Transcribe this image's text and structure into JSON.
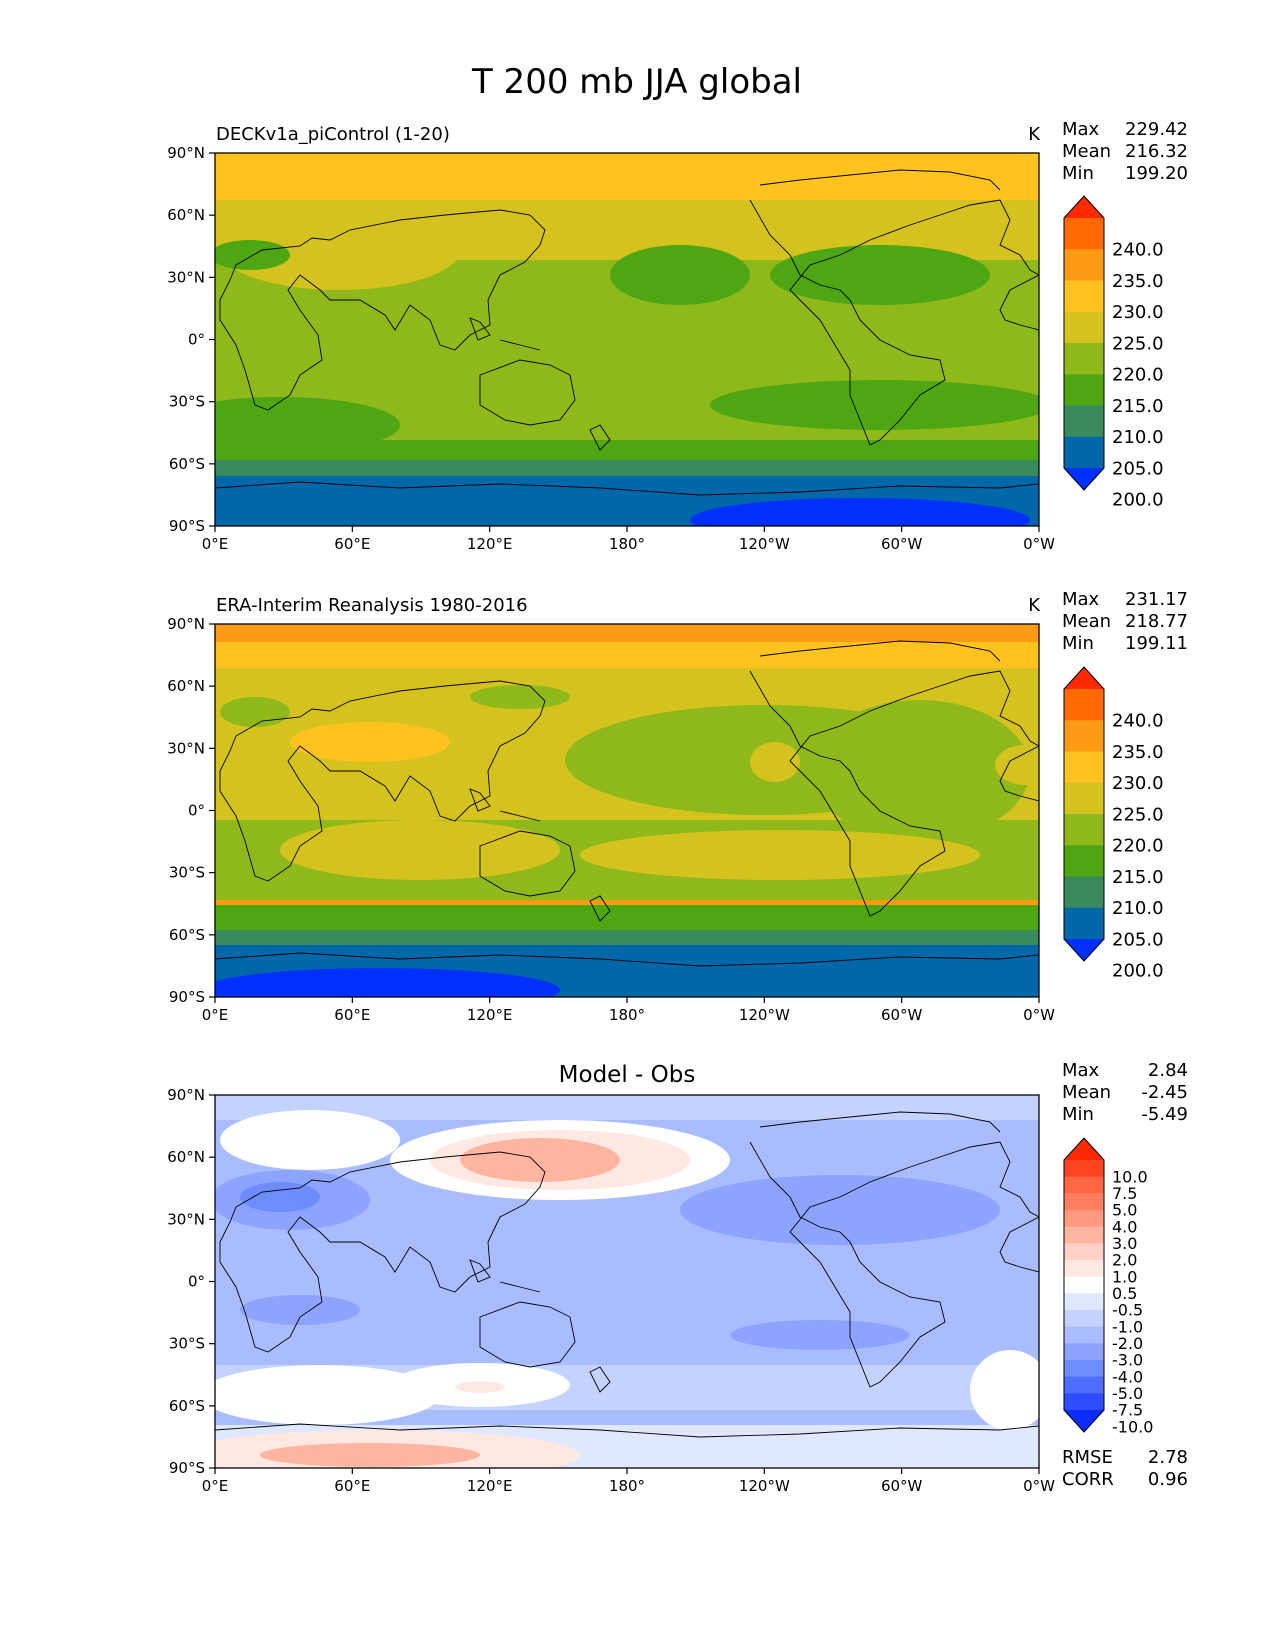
{
  "title": "T 200 mb JJA global",
  "xticks": [
    "0°E",
    "60°E",
    "120°E",
    "180°",
    "120°W",
    "60°W",
    "0°W"
  ],
  "yticks": [
    "90°N",
    "60°N",
    "30°N",
    "0°",
    "30°S",
    "60°S",
    "90°S"
  ],
  "panels": [
    {
      "id": "model",
      "left_title": "DECKv1a_piControl (1-20)",
      "center_title": "",
      "units": "K",
      "stats": [
        {
          "label": "Max",
          "value": "229.42"
        },
        {
          "label": "Mean",
          "value": "216.32"
        },
        {
          "label": "Min",
          "value": "199.20"
        }
      ],
      "colorbar_labels": [
        "240.0",
        "235.0",
        "230.0",
        "225.0",
        "220.0",
        "215.0",
        "210.0",
        "205.0",
        "200.0"
      ],
      "colorbar_colors": [
        "#ff2a00",
        "#ff6a00",
        "#ff9a14",
        "#ffc21e",
        "#d4c31e",
        "#8fb81a",
        "#4ea613",
        "#3a8a5e",
        "#0068a8",
        "#0030ff"
      ],
      "bottom_stats": []
    },
    {
      "id": "obs",
      "left_title": "ERA-Interim Reanalysis 1980-2016",
      "center_title": "",
      "units": "K",
      "stats": [
        {
          "label": "Max",
          "value": "231.17"
        },
        {
          "label": "Mean",
          "value": "218.77"
        },
        {
          "label": "Min",
          "value": "199.11"
        }
      ],
      "colorbar_labels": [
        "240.0",
        "235.0",
        "230.0",
        "225.0",
        "220.0",
        "215.0",
        "210.0",
        "205.0",
        "200.0"
      ],
      "colorbar_colors": [
        "#ff2a00",
        "#ff6a00",
        "#ff9a14",
        "#ffc21e",
        "#d4c31e",
        "#8fb81a",
        "#4ea613",
        "#3a8a5e",
        "#0068a8",
        "#0030ff"
      ],
      "bottom_stats": []
    },
    {
      "id": "diff",
      "left_title": "",
      "center_title": "Model - Obs",
      "units": "",
      "stats": [
        {
          "label": "Max",
          "value": "2.84"
        },
        {
          "label": "Mean",
          "value": "-2.45"
        },
        {
          "label": "Min",
          "value": "-5.49"
        }
      ],
      "colorbar_labels": [
        "10.0",
        "7.5",
        "5.0",
        "4.0",
        "3.0",
        "2.0",
        "1.0",
        "0.5",
        "-0.5",
        "-1.0",
        "-2.0",
        "-3.0",
        "-4.0",
        "-5.0",
        "-7.5",
        "-10.0"
      ],
      "colorbar_colors": [
        "#ff2a00",
        "#ff4422",
        "#ff6644",
        "#ff7e60",
        "#ff9a80",
        "#ffb5a0",
        "#ffd0c4",
        "#ffe8e2",
        "#ffffff",
        "#e0e8ff",
        "#c4d2ff",
        "#a8bcff",
        "#8ca4ff",
        "#6f8cff",
        "#4f6eff",
        "#2e4dff",
        "#0b2cff"
      ],
      "bottom_stats": [
        {
          "label": "RMSE",
          "value": "2.78"
        },
        {
          "label": "CORR",
          "value": "0.96"
        }
      ]
    }
  ],
  "field_colors": {
    "model": {
      "polar_n": "#ffc21e",
      "mid": "#d4c31e",
      "trop": "#8fb81a",
      "belt": "#4ea613",
      "s60": "#3a8a5e",
      "s70": "#0068a8",
      "s85": "#0030ff"
    },
    "obs": {
      "polar_n": "#ff9a14",
      "n70": "#ffc21e",
      "mid": "#d4c31e",
      "trop": "#8fb81a",
      "belt": "#4ea613",
      "s60": "#3a8a5e",
      "s70": "#0068a8",
      "s85": "#0030ff"
    },
    "diff": {
      "base": "#a8bcff",
      "dark": "#6f8cff",
      "light": "#c4d2ff",
      "white": "#ffffff",
      "pink": "#ffb5a0",
      "pale": "#ffe8e2"
    }
  }
}
